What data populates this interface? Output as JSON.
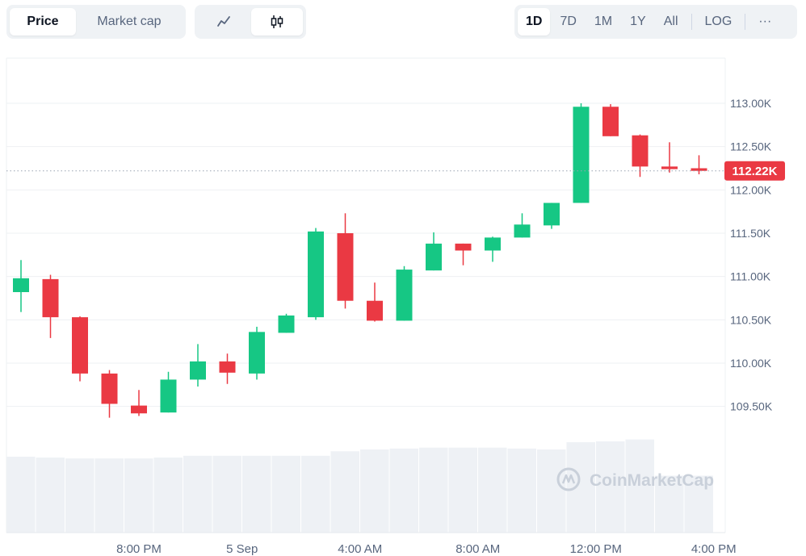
{
  "toolbar": {
    "metric_tabs": [
      "Price",
      "Market cap"
    ],
    "active_metric": "Price",
    "chart_types": [
      {
        "icon": "line-chart-icon"
      },
      {
        "icon": "candlestick-icon"
      }
    ],
    "active_chart_type": "candlestick-icon",
    "ranges": [
      "1D",
      "7D",
      "1M",
      "1Y",
      "All"
    ],
    "active_range": "1D",
    "log_label": "LOG",
    "more_label": "···"
  },
  "watermark": "CoinMarketCap",
  "colors": {
    "up": "#16c784",
    "down": "#ea3943",
    "volume": "#eef1f5",
    "grid": "#eef0f3",
    "price_tag": "#ea3943"
  },
  "chart_data": {
    "type": "candlestick",
    "title": "",
    "current_price": 112220,
    "current_price_label": "112.22K",
    "y_ticks": [
      {
        "value": 113000,
        "label": "113.00K"
      },
      {
        "value": 112500,
        "label": "112.50K"
      },
      {
        "value": 112000,
        "label": "112.00K"
      },
      {
        "value": 111500,
        "label": "111.50K"
      },
      {
        "value": 111000,
        "label": "111.00K"
      },
      {
        "value": 110500,
        "label": "110.50K"
      },
      {
        "value": 110000,
        "label": "110.00K"
      },
      {
        "value": 109500,
        "label": "109.50K"
      }
    ],
    "x_ticks": [
      {
        "index": 4,
        "label": "8:00 PM"
      },
      {
        "index": 7.5,
        "label": "5 Sep"
      },
      {
        "index": 11.5,
        "label": "4:00 AM"
      },
      {
        "index": 15.5,
        "label": "8:00 AM"
      },
      {
        "index": 19.5,
        "label": "12:00 PM"
      },
      {
        "index": 23.5,
        "label": "4:00 PM"
      }
    ],
    "candles": [
      {
        "o": 110820,
        "h": 111190,
        "l": 110590,
        "c": 110980
      },
      {
        "o": 110970,
        "h": 111020,
        "l": 110290,
        "c": 110530
      },
      {
        "o": 110530,
        "h": 110540,
        "l": 109790,
        "c": 109880
      },
      {
        "o": 109880,
        "h": 109920,
        "l": 109370,
        "c": 109530
      },
      {
        "o": 109510,
        "h": 109690,
        "l": 109390,
        "c": 109420
      },
      {
        "o": 109430,
        "h": 109900,
        "l": 109430,
        "c": 109810
      },
      {
        "o": 109810,
        "h": 110220,
        "l": 109730,
        "c": 110020
      },
      {
        "o": 110020,
        "h": 110110,
        "l": 109760,
        "c": 109890
      },
      {
        "o": 109880,
        "h": 110420,
        "l": 109810,
        "c": 110360
      },
      {
        "o": 110350,
        "h": 110570,
        "l": 110350,
        "c": 110550
      },
      {
        "o": 110530,
        "h": 111560,
        "l": 110500,
        "c": 111520
      },
      {
        "o": 111500,
        "h": 111730,
        "l": 110630,
        "c": 110720
      },
      {
        "o": 110720,
        "h": 110930,
        "l": 110480,
        "c": 110490
      },
      {
        "o": 110490,
        "h": 111120,
        "l": 110490,
        "c": 111080
      },
      {
        "o": 111070,
        "h": 111510,
        "l": 111070,
        "c": 111380
      },
      {
        "o": 111380,
        "h": 111380,
        "l": 111130,
        "c": 111300
      },
      {
        "o": 111300,
        "h": 111460,
        "l": 111170,
        "c": 111450
      },
      {
        "o": 111450,
        "h": 111730,
        "l": 111450,
        "c": 111600
      },
      {
        "o": 111590,
        "h": 111850,
        "l": 111550,
        "c": 111850
      },
      {
        "o": 111850,
        "h": 113000,
        "l": 111850,
        "c": 112960
      },
      {
        "o": 112960,
        "h": 112990,
        "l": 112620,
        "c": 112620
      },
      {
        "o": 112630,
        "h": 112640,
        "l": 112150,
        "c": 112270
      },
      {
        "o": 112270,
        "h": 112550,
        "l": 112200,
        "c": 112240
      },
      {
        "o": 112250,
        "h": 112400,
        "l": 112180,
        "c": 112220
      }
    ],
    "volume": [
      0.84,
      0.83,
      0.82,
      0.82,
      0.82,
      0.83,
      0.85,
      0.85,
      0.85,
      0.85,
      0.85,
      0.9,
      0.92,
      0.93,
      0.94,
      0.94,
      0.94,
      0.93,
      0.92,
      1.0,
      1.01,
      1.03,
      0.63,
      0.63
    ],
    "grid": true
  }
}
